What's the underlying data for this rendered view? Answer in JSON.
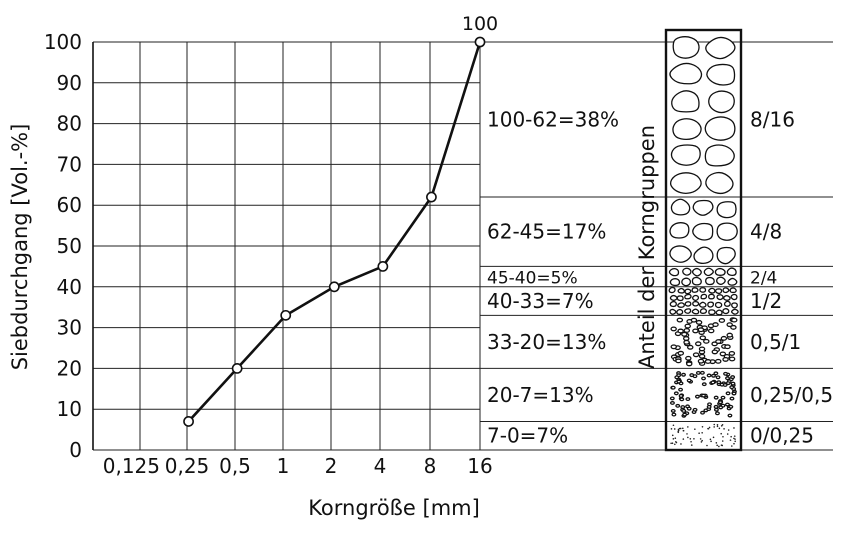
{
  "chart_data": {
    "type": "line",
    "ylabel": "Siebdurchgang [Vol.-%]",
    "xlabel": "Korngröße [mm]",
    "x_ticks": [
      "0,125",
      "0,25",
      "0,5",
      "1",
      "2",
      "4",
      "8",
      "16"
    ],
    "y_ticks": [
      "0",
      "10",
      "20",
      "30",
      "40",
      "50",
      "60",
      "70",
      "80",
      "90",
      "100"
    ],
    "ylim": [
      0,
      100
    ],
    "grid": true,
    "series": [
      {
        "x": [
          0.25,
          0.5,
          1,
          2,
          4,
          8,
          16
        ],
        "y": [
          7,
          20,
          33,
          40,
          45,
          62,
          100
        ]
      }
    ],
    "annotations": [
      {
        "text": "100",
        "x": 16,
        "y": 100
      }
    ],
    "vertical_label": "Anteil der Korngruppen",
    "groups": [
      {
        "share": "100-62=38%",
        "range": "8/16",
        "lower": 62,
        "upper": 100
      },
      {
        "share": "62-45=17%",
        "range": "4/8",
        "lower": 45,
        "upper": 62
      },
      {
        "share": "45-40=5%",
        "range": "2/4",
        "lower": 40,
        "upper": 45
      },
      {
        "share": "40-33=7%",
        "range": "1/2",
        "lower": 33,
        "upper": 40
      },
      {
        "share": "33-20=13%",
        "range": "0,5/1",
        "lower": 20,
        "upper": 33
      },
      {
        "share": "20-7=13%",
        "range": "0,25/0,5",
        "lower": 7,
        "upper": 20
      },
      {
        "share": "7-0=7%",
        "range": "0/0,25",
        "lower": 0,
        "upper": 7
      }
    ]
  }
}
